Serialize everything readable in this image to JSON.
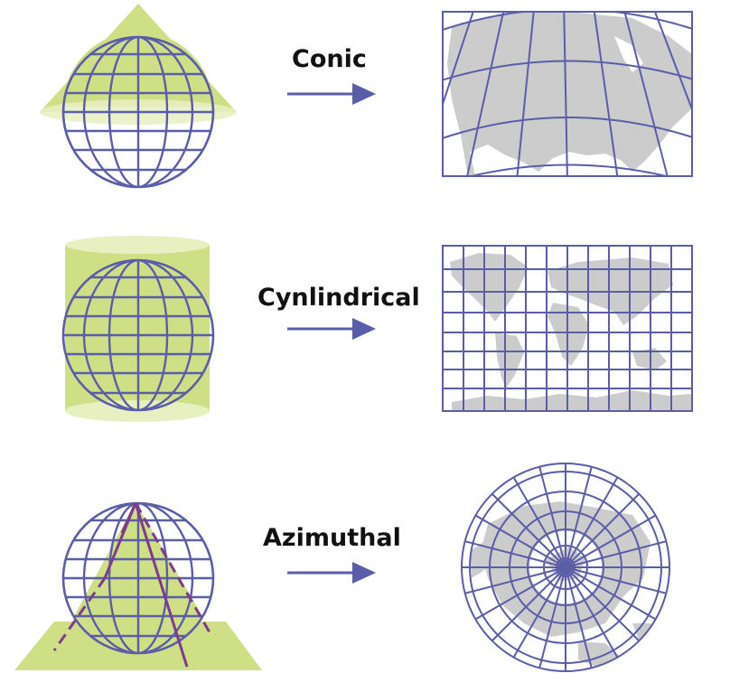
{
  "projections": [
    {
      "label": "Conic"
    },
    {
      "label": "Cynlindrical"
    },
    {
      "label": "Azimuthal"
    }
  ],
  "colors": {
    "grid": "#5a5da8",
    "projection_surface": "#cfdf86",
    "surface_light": "#e8f0c2",
    "land": "#cccccc",
    "light_ray": "#7e3c8c",
    "arrow": "#5a5da8"
  },
  "icons": [
    "globe-icon",
    "cone-icon",
    "cylinder-icon",
    "plane-icon",
    "arrow-right-icon",
    "map-icon"
  ]
}
